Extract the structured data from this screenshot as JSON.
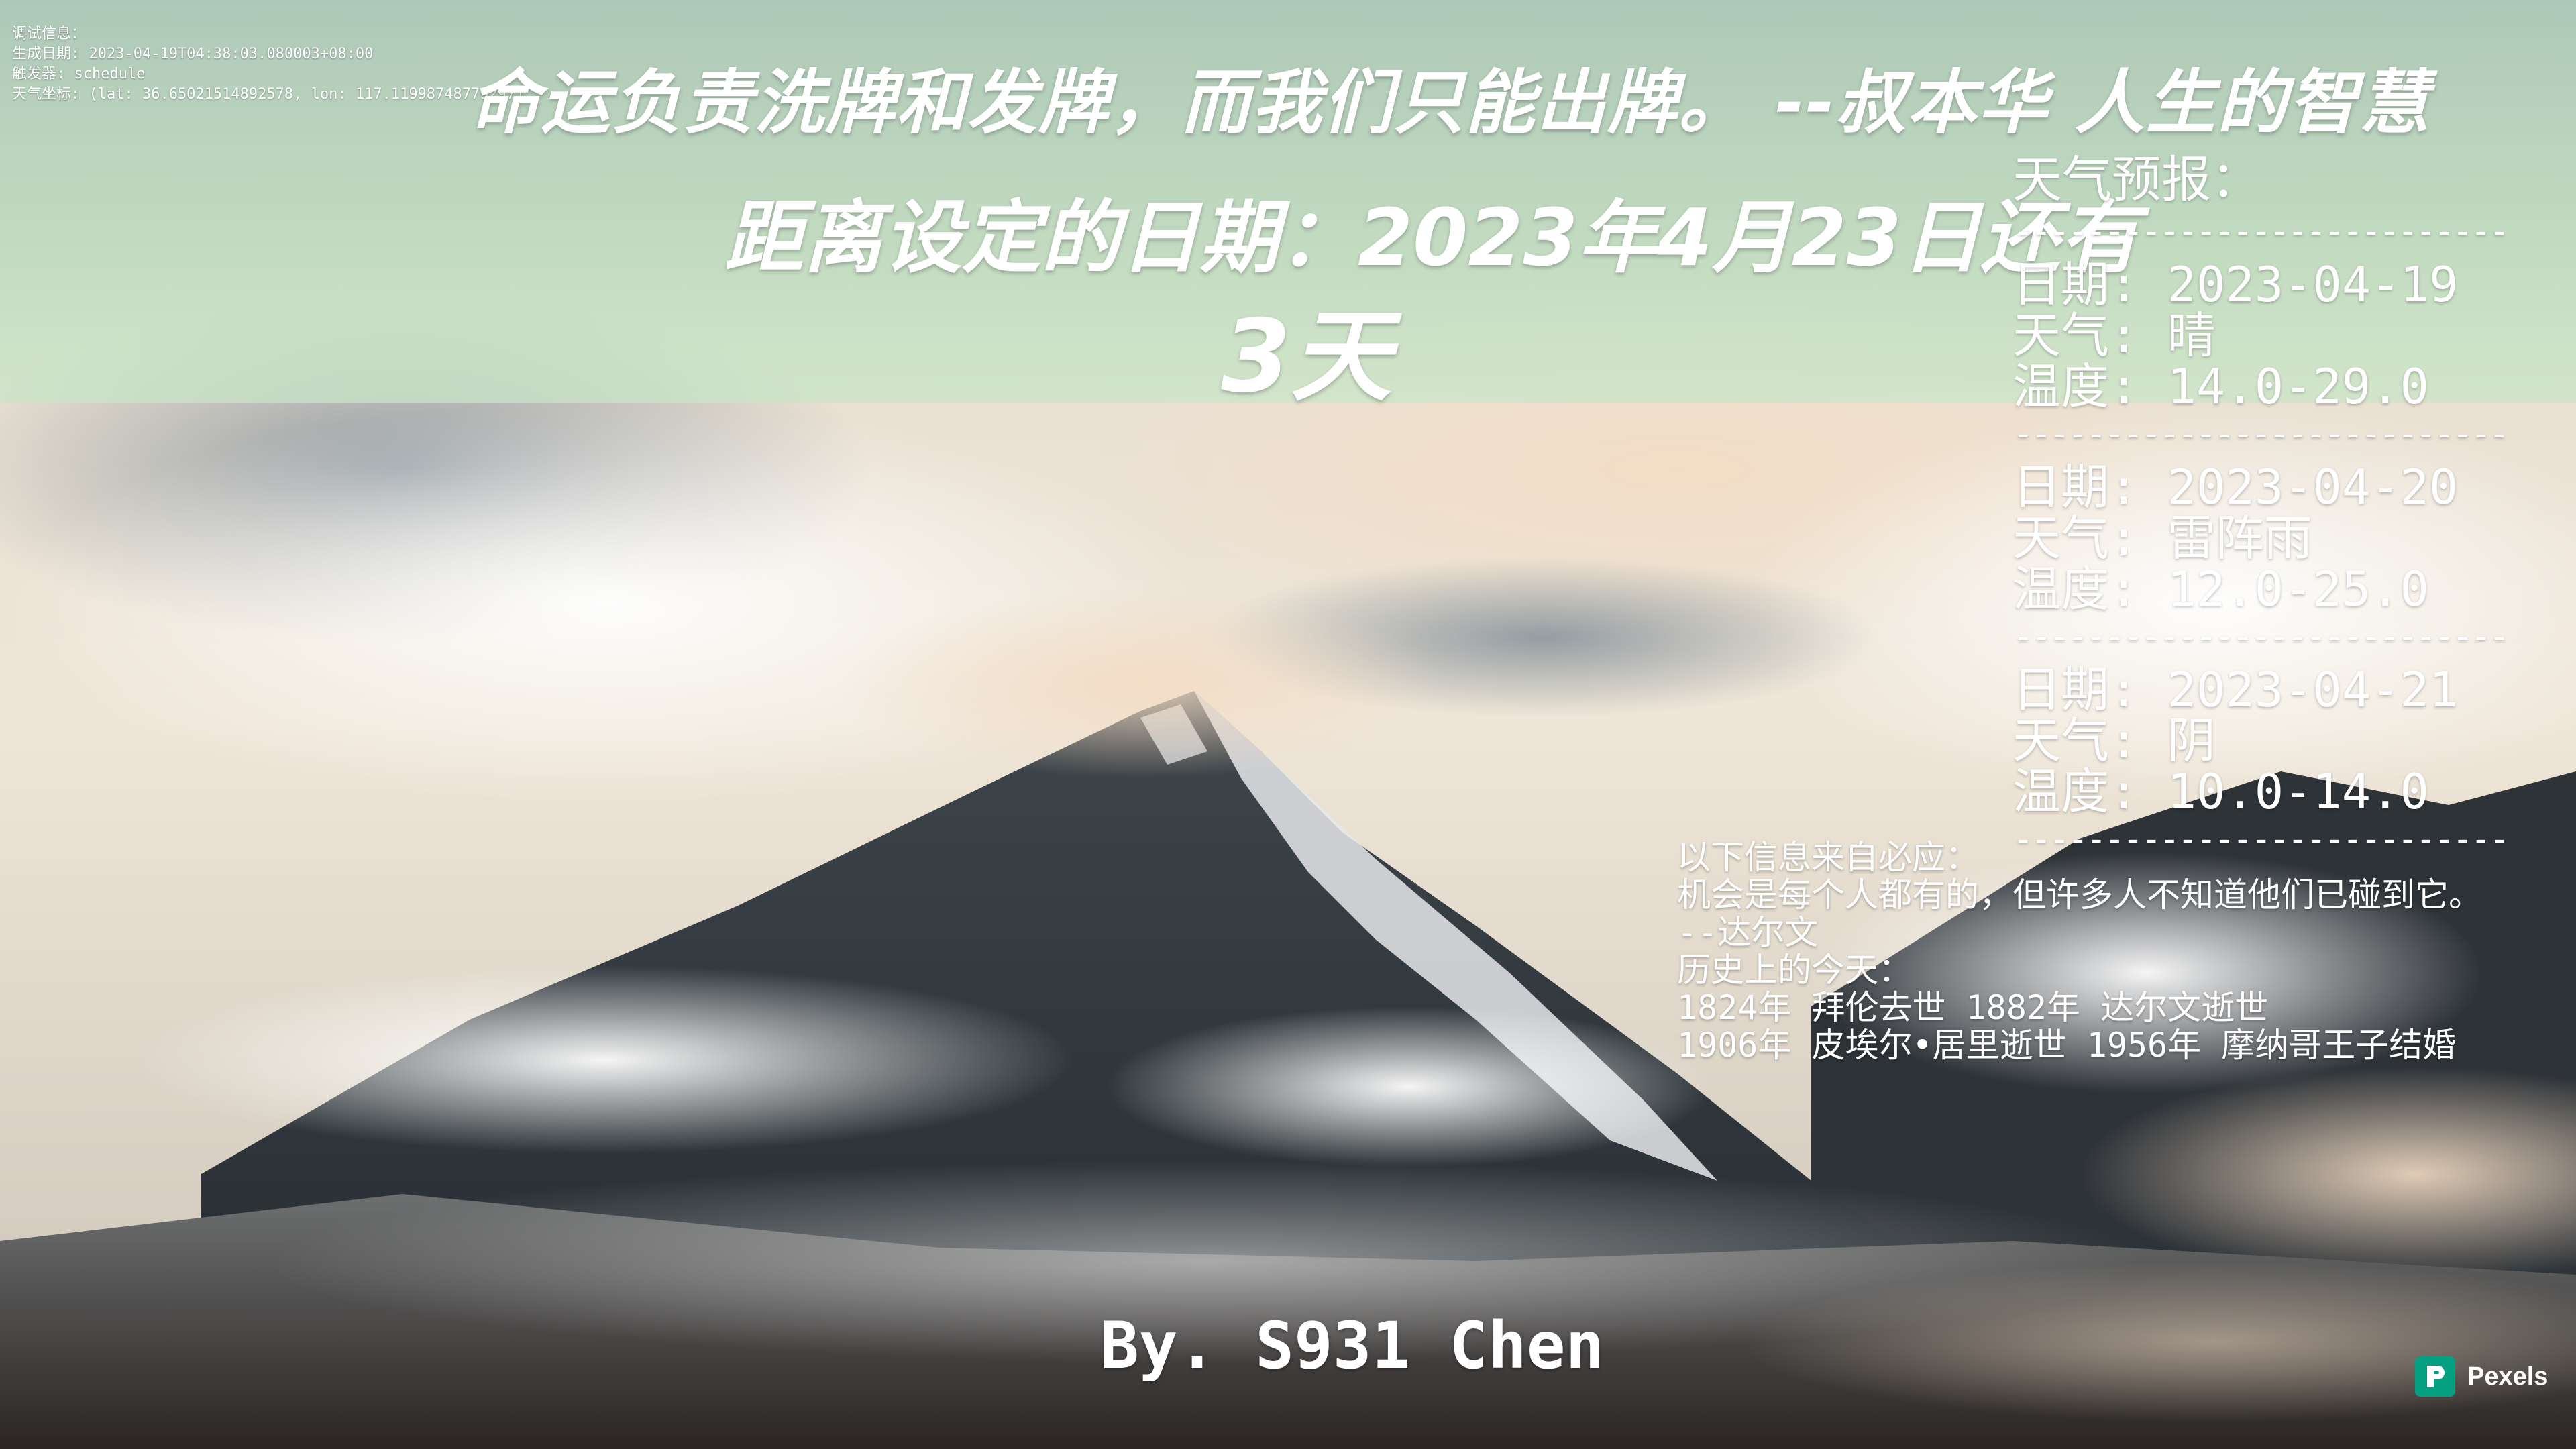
{
  "debug": {
    "title": "调试信息：",
    "generated": "生成日期: 2023-04-19T04:38:03.080003+08:00",
    "trigger": "触发器: schedule",
    "coords": "天气坐标: (lat: 36.65021514892578, lon: 117.11998748779297)"
  },
  "quote": "命运负责洗牌和发牌，而我们只能出牌。  --叔本华 人生的智慧",
  "countdown": {
    "label": "距离设定的日期：2023年4月23日还有",
    "days": "3天"
  },
  "weather": {
    "title": "天气预报：",
    "divider": "-----------------------------",
    "days": [
      {
        "date": "日期: 2023-04-19",
        "cond": "天气: 晴",
        "temp": "温度: 14.0-29.0"
      },
      {
        "date": "日期: 2023-04-20",
        "cond": "天气: 雷阵雨",
        "temp": "温度: 12.0-25.0"
      },
      {
        "date": "日期: 2023-04-21",
        "cond": "天气: 阴",
        "temp": "温度: 10.0-14.0"
      }
    ]
  },
  "info": {
    "source": "以下信息来自必应：",
    "quote": "机会是每个人都有的，但许多人不知道他们已碰到它。",
    "author": "--达尔文",
    "history_title": "历史上的今天：",
    "history_1": "1824年 拜伦去世 1882年 达尔文逝世",
    "history_2": "1906年 皮埃尔•居里逝世 1956年 摩纳哥王子结婚"
  },
  "signature": "By. S931 Chen",
  "attribution": "Pexels",
  "colors": {
    "band": "#bcdcbc",
    "text": "#ffffff",
    "pexels": "#05a081"
  }
}
